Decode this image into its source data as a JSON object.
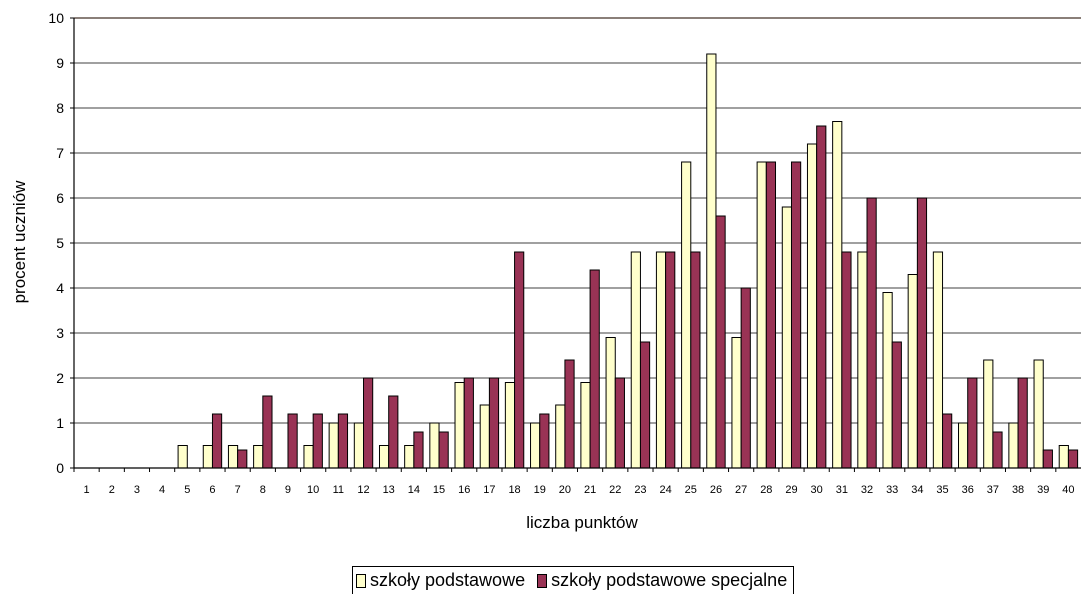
{
  "chart_data": {
    "type": "bar",
    "title": "",
    "xlabel": "liczba punktów",
    "ylabel": "procent uczniów",
    "ylim": [
      0,
      10
    ],
    "yticks": [
      0,
      1,
      2,
      3,
      4,
      5,
      6,
      7,
      8,
      9,
      10
    ],
    "grid": true,
    "legend_position": "bottom",
    "categories": [
      "1",
      "2",
      "3",
      "4",
      "5",
      "6",
      "7",
      "8",
      "9",
      "10",
      "11",
      "12",
      "13",
      "14",
      "15",
      "16",
      "17",
      "18",
      "19",
      "20",
      "21",
      "22",
      "23",
      "24",
      "25",
      "26",
      "27",
      "28",
      "29",
      "30",
      "31",
      "32",
      "33",
      "34",
      "35",
      "36",
      "37",
      "38",
      "39",
      "40"
    ],
    "series": [
      {
        "name": "szkoły podstawowe",
        "color": "#FFFFCC",
        "values": [
          0,
          0,
          0,
          0,
          0.5,
          0.5,
          0.5,
          0.5,
          0,
          0.5,
          1.0,
          1.0,
          0.5,
          0.5,
          1.0,
          1.9,
          1.4,
          1.9,
          1.0,
          1.4,
          1.9,
          2.9,
          4.8,
          4.8,
          6.8,
          9.2,
          2.9,
          6.8,
          5.8,
          7.2,
          7.7,
          4.8,
          3.9,
          4.3,
          4.8,
          1.0,
          2.4,
          1.0,
          2.4,
          0.5
        ]
      },
      {
        "name": "szkoły podstawowe specjalne",
        "color": "#993355",
        "values": [
          0,
          0,
          0,
          0,
          0,
          1.2,
          0.4,
          1.6,
          1.2,
          1.2,
          1.2,
          2.0,
          1.6,
          0.8,
          0.8,
          2.0,
          2.0,
          4.8,
          1.2,
          2.4,
          4.4,
          2.0,
          2.8,
          4.8,
          4.8,
          5.6,
          4.0,
          6.8,
          6.8,
          7.6,
          4.8,
          6.0,
          2.8,
          6.0,
          1.2,
          2.0,
          0.8,
          2.0,
          0.4,
          0.4
        ]
      }
    ]
  }
}
